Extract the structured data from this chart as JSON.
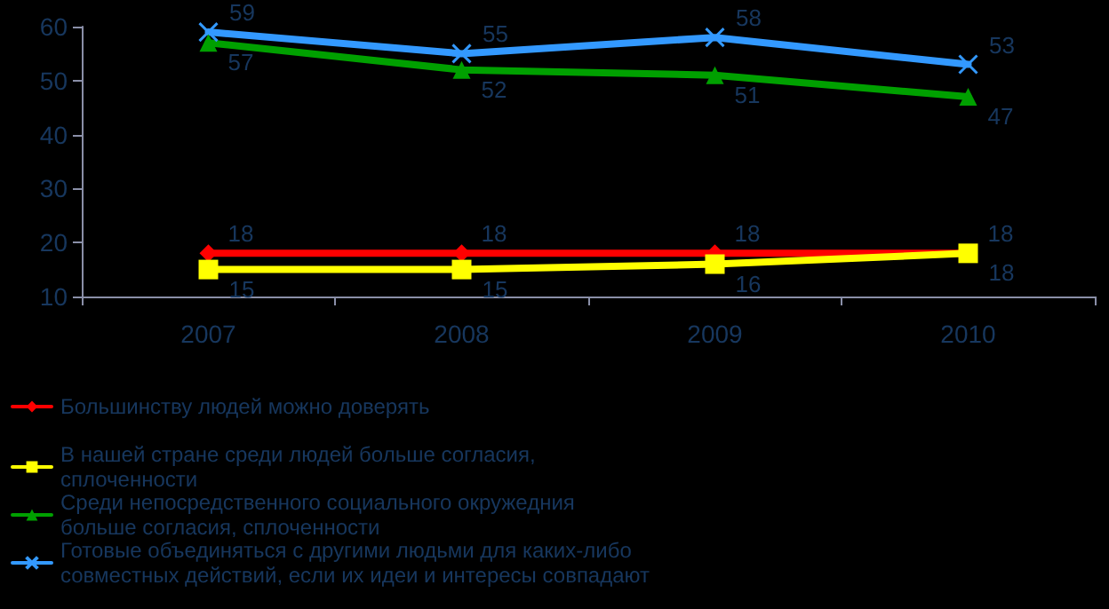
{
  "chart_data": {
    "type": "line",
    "categories": [
      "2007",
      "2008",
      "2009",
      "2010"
    ],
    "series": [
      {
        "name": "Большинству людей можно доверять",
        "color": "#ff0000",
        "marker": "diamond",
        "values": [
          18,
          18,
          18,
          18
        ]
      },
      {
        "name": "В нашей стране среди людей больше согласия, сплоченности",
        "color": "#ffff00",
        "marker": "square",
        "values": [
          15,
          15,
          16,
          18
        ]
      },
      {
        "name": "Среди непосредственного социального окружедния больше согласия, сплоченности",
        "color": "#00a000",
        "marker": "triangle",
        "values": [
          57,
          52,
          51,
          47
        ]
      },
      {
        "name": "Готовые объединяться с другими людьми для каких-либо совместных действий, если их идеи и интересы совпадают",
        "color": "#3399ff",
        "marker": "cross",
        "values": [
          59,
          55,
          58,
          53
        ]
      }
    ],
    "ylim": [
      10,
      60
    ],
    "yticks": [
      10,
      20,
      30,
      40,
      50,
      60
    ],
    "data_labels": true,
    "grid": false,
    "legend": "bottom",
    "line_style": "solid"
  }
}
